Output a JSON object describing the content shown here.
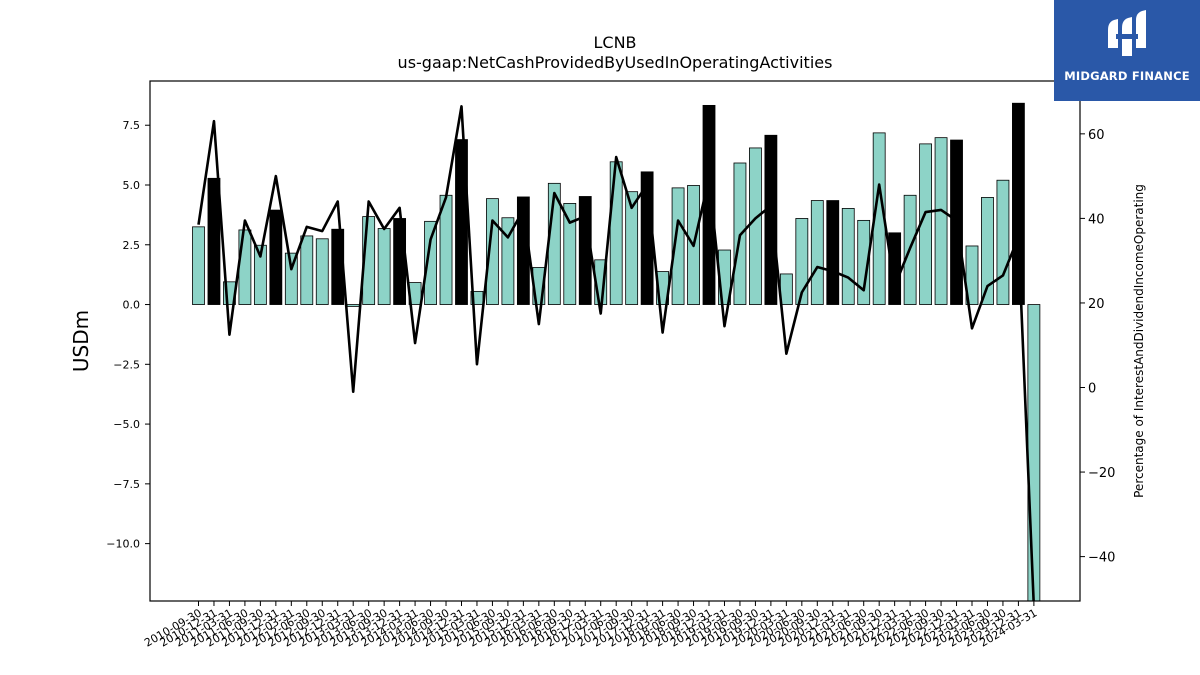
{
  "brand": {
    "logo_text": "MIDGARD FINANCE"
  },
  "chart_data": {
    "type": "bar",
    "title": "LCNB",
    "subtitle": "us-gaap:NetCashProvidedByUsedInOperatingActivities",
    "ylabel": "USDm",
    "y2label": "Percentage of InterestAndDividendIncomeOperating",
    "ylim": [
      -12.4,
      9.35
    ],
    "y2lim": [
      -50.5,
      72.5
    ],
    "yticks": [
      -10.0,
      -7.5,
      -5.0,
      -2.5,
      0.0,
      2.5,
      5.0,
      7.5
    ],
    "y2ticks": [
      -40,
      -20,
      0,
      20,
      40,
      60
    ],
    "colors": {
      "bar": "#8dd3c7",
      "q4_bar": "#000000",
      "line": "#000000"
    },
    "categories": [
      "2010-09-30",
      "2010-12-31",
      "2011-03-31",
      "2011-06-30",
      "2011-09-30",
      "2011-12-31",
      "2012-03-31",
      "2012-06-30",
      "2012-09-30",
      "2012-12-31",
      "2013-03-31",
      "2013-06-30",
      "2013-09-30",
      "2013-12-31",
      "2014-03-31",
      "2014-06-30",
      "2014-09-30",
      "2014-12-31",
      "2015-03-31",
      "2015-06-30",
      "2015-09-30",
      "2015-12-31",
      "2016-03-31",
      "2016-06-30",
      "2016-09-30",
      "2016-12-31",
      "2017-03-31",
      "2017-06-30",
      "2017-09-30",
      "2017-12-31",
      "2018-03-31",
      "2018-06-30",
      "2018-09-30",
      "2018-12-31",
      "2019-03-31",
      "2019-06-30",
      "2019-09-30",
      "2019-12-31",
      "2020-03-31",
      "2020-06-30",
      "2020-09-30",
      "2020-12-31",
      "2021-03-31",
      "2021-06-30",
      "2021-09-30",
      "2021-12-31",
      "2022-03-31",
      "2022-06-30",
      "2022-09-30",
      "2022-12-31",
      "2023-03-31",
      "2023-06-30",
      "2023-09-30",
      "2023-12-31",
      "2024-03-31"
    ],
    "values": [
      3.25,
      5.28,
      0.95,
      3.12,
      2.48,
      3.95,
      2.15,
      2.87,
      2.75,
      3.15,
      -0.08,
      3.68,
      3.18,
      3.6,
      0.92,
      3.48,
      4.57,
      6.9,
      0.55,
      4.43,
      3.63,
      4.5,
      1.55,
      5.07,
      4.23,
      4.52,
      1.87,
      5.97,
      4.72,
      5.55,
      1.38,
      4.88,
      4.98,
      8.33,
      2.28,
      5.92,
      6.55,
      7.08,
      1.28,
      3.6,
      4.35,
      4.35,
      4.02,
      3.52,
      7.18,
      3.0,
      4.57,
      6.72,
      6.98,
      6.88,
      2.45,
      4.48,
      5.2,
      8.42,
      -12.6
    ],
    "q4_flags": [
      false,
      true,
      false,
      false,
      false,
      true,
      false,
      false,
      false,
      true,
      false,
      false,
      false,
      true,
      false,
      false,
      false,
      true,
      false,
      false,
      false,
      true,
      false,
      false,
      false,
      true,
      false,
      false,
      false,
      true,
      false,
      false,
      false,
      true,
      false,
      false,
      false,
      true,
      false,
      false,
      false,
      true,
      false,
      false,
      false,
      true,
      false,
      false,
      false,
      true,
      false,
      false,
      false,
      true,
      false
    ],
    "series": [
      {
        "values": [
          38.5,
          63.0,
          12.5,
          39.5,
          31.0,
          50.0,
          28.0,
          38.0,
          37.0,
          44.0,
          -1.0,
          44.0,
          37.5,
          42.5,
          10.5,
          35.0,
          45.0,
          66.5,
          5.5,
          39.5,
          35.5,
          42.0,
          15.0,
          46.0,
          39.0,
          40.5,
          17.5,
          54.5,
          42.5,
          48.0,
          13.0,
          39.5,
          33.5,
          49.5,
          14.5,
          36.0,
          40.0,
          43.0,
          8.0,
          22.5,
          28.5,
          27.5,
          26.0,
          23.0,
          48.0,
          24.0,
          33.0,
          41.5,
          42.0,
          39.5,
          14.0,
          24.0,
          26.5,
          35.5,
          -52.0
        ]
      }
    ]
  }
}
